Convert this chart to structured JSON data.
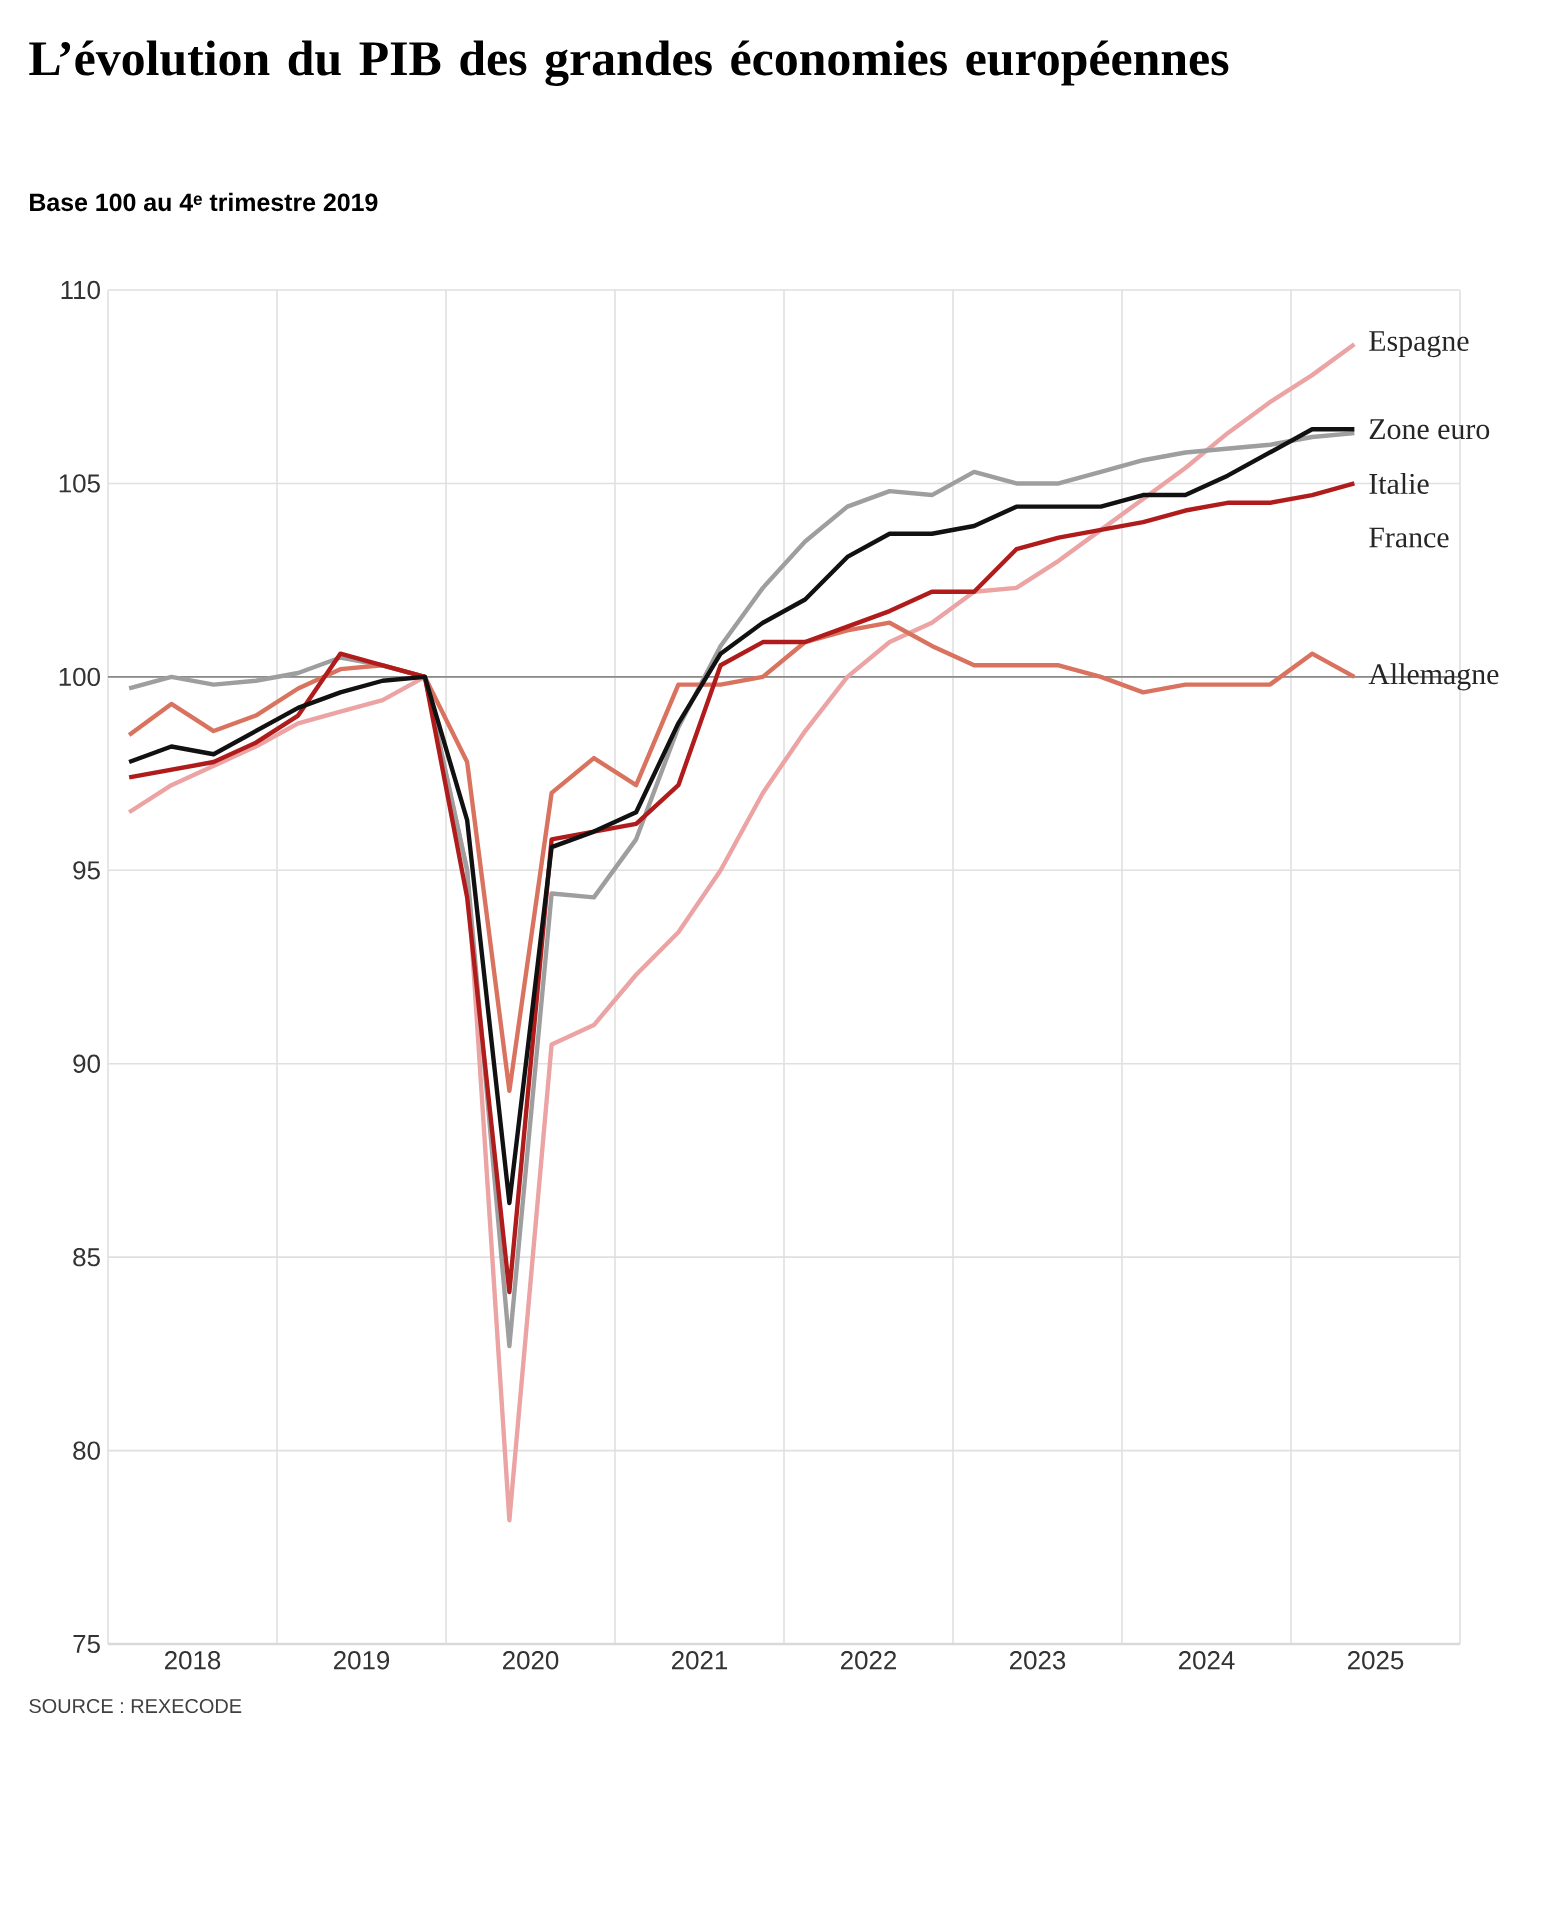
{
  "chart_data": {
    "type": "line",
    "title": "L’évolution du PIB des grandes économies européennes",
    "subtitle": "Base 100 au 4ᵉ trimestre 2019",
    "annotations": [
      "SOURCE : REXECODE"
    ],
    "x": [
      2018.125,
      2018.375,
      2018.625,
      2018.875,
      2019.125,
      2019.375,
      2019.625,
      2019.875,
      2020.125,
      2020.375,
      2020.625,
      2020.875,
      2021.125,
      2021.375,
      2021.625,
      2021.875,
      2022.125,
      2022.375,
      2022.625,
      2022.875,
      2023.125,
      2023.375,
      2023.625,
      2023.875,
      2024.125,
      2024.375,
      2024.625,
      2024.875,
      2025.125,
      2025.375
    ],
    "series": [
      {
        "name": "Espagne",
        "color": "#eba3a3",
        "values": [
          96.5,
          97.2,
          97.7,
          98.2,
          98.8,
          99.1,
          99.4,
          100.0,
          95.0,
          78.2,
          90.5,
          91.0,
          92.3,
          93.4,
          95.0,
          97.0,
          98.6,
          100.0,
          100.9,
          101.4,
          102.2,
          102.3,
          103.0,
          103.8,
          104.6,
          105.4,
          106.3,
          107.1,
          107.8,
          108.6
        ]
      },
      {
        "name": "Italie",
        "color": "#9e9e9e",
        "values": [
          99.7,
          100.0,
          99.8,
          99.9,
          100.1,
          100.5,
          100.3,
          100.0,
          95.0,
          82.7,
          94.4,
          94.3,
          95.8,
          98.7,
          100.8,
          102.3,
          103.5,
          104.4,
          104.8,
          104.7,
          105.3,
          105.0,
          105.0,
          105.3,
          105.6,
          105.8,
          105.9,
          106.0,
          106.2,
          106.3
        ]
      },
      {
        "name": "Allemagne",
        "color": "#d9735f",
        "values": [
          98.5,
          99.3,
          98.6,
          99.0,
          99.7,
          100.2,
          100.3,
          100.0,
          97.8,
          89.3,
          97.0,
          97.9,
          97.2,
          99.8,
          99.8,
          100.0,
          100.9,
          101.2,
          101.4,
          100.8,
          100.3,
          100.3,
          100.3,
          100.0,
          99.6,
          99.8,
          99.8,
          99.8,
          100.6,
          100.0
        ]
      },
      {
        "name": "France",
        "color": "#b01c1c",
        "values": [
          97.4,
          97.6,
          97.8,
          98.3,
          99.0,
          100.6,
          100.3,
          100.0,
          94.3,
          84.1,
          95.8,
          96.0,
          96.2,
          97.2,
          100.3,
          100.9,
          100.9,
          101.3,
          101.7,
          102.2,
          102.2,
          103.3,
          103.6,
          103.8,
          104.0,
          104.3,
          104.5,
          104.5,
          104.7,
          105.0
        ]
      },
      {
        "name": "Zone euro",
        "color": "#111111",
        "values": [
          97.8,
          98.2,
          98.0,
          98.6,
          99.2,
          99.6,
          99.9,
          100.0,
          96.3,
          86.4,
          95.6,
          96.0,
          96.5,
          98.8,
          100.6,
          101.4,
          102.0,
          103.1,
          103.7,
          103.7,
          103.9,
          104.4,
          104.4,
          104.4,
          104.7,
          104.7,
          105.2,
          105.8,
          106.4,
          106.4
        ]
      }
    ],
    "xlim": [
      2018,
      2026
    ],
    "xticks": [
      {
        "value": 2018,
        "label": null
      },
      {
        "value": 2019,
        "label": null
      },
      {
        "value": 2020,
        "label": null
      },
      {
        "value": 2021,
        "label": null
      },
      {
        "value": 2022,
        "label": null
      },
      {
        "value": 2023,
        "label": null
      },
      {
        "value": 2024,
        "label": null
      },
      {
        "value": 2025,
        "label": null
      },
      {
        "value": 2026,
        "label": null
      },
      {
        "value": 2018.5,
        "label": "2018"
      },
      {
        "value": 2019.5,
        "label": "2019"
      },
      {
        "value": 2020.5,
        "label": "2020"
      },
      {
        "value": 2021.5,
        "label": "2021"
      },
      {
        "value": 2022.5,
        "label": "2022"
      },
      {
        "value": 2023.5,
        "label": "2023"
      },
      {
        "value": 2024.5,
        "label": "2024"
      },
      {
        "value": 2025.5,
        "label": "2025"
      }
    ],
    "ylim": [
      75,
      110
    ],
    "yticks": [
      75,
      80,
      85,
      90,
      95,
      100,
      105,
      110
    ],
    "ref_lines": [
      {
        "axis": "y",
        "value": 100,
        "color": "#8a8a8a"
      }
    ],
    "grid": true,
    "legend": false,
    "marker": "none",
    "line_style": "solid"
  }
}
